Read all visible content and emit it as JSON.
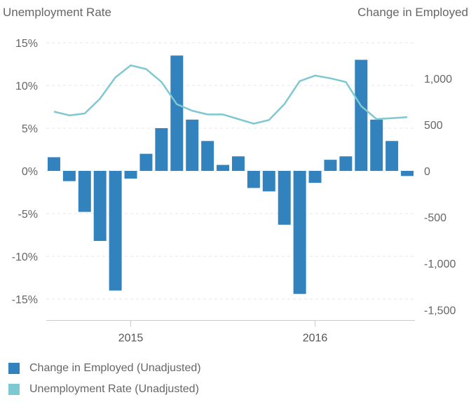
{
  "chart_data": {
    "type": "bar+line",
    "left_axis_title": "Unemployment Rate",
    "right_axis_title": "Change in Employed",
    "left_axis": {
      "min": -17.5,
      "max": 15,
      "ticks": [
        15,
        10,
        5,
        0,
        -5,
        -10,
        -15
      ],
      "tick_labels": [
        "15%",
        "10%",
        "5%",
        "0%",
        "-5%",
        "-10%",
        "-15%"
      ]
    },
    "right_axis": {
      "min": -1750,
      "max": 1250,
      "ticks": [
        1000,
        500,
        0,
        -500,
        -1000,
        -1500
      ],
      "tick_labels": [
        "1,000",
        "500",
        "0",
        "-500",
        "-1,000",
        "-1,500"
      ]
    },
    "x_labels": [
      {
        "label": "2015",
        "index": 5
      },
      {
        "label": "2016",
        "index": 17
      }
    ],
    "grid": true,
    "legend_position": "bottom-left",
    "series": [
      {
        "name": "Change in Employed (Unadjusted)",
        "kind": "bar",
        "axis": "left",
        "color": "#3182bd",
        "values": [
          1.6,
          -1.2,
          -4.8,
          -8.2,
          -14.0,
          -0.9,
          2.0,
          5.0,
          13.5,
          6.0,
          3.5,
          0.7,
          1.7,
          -2.0,
          -2.4,
          -6.3,
          -14.4,
          -1.4,
          1.3,
          1.7,
          13.0,
          6.0,
          3.5,
          -0.6
        ]
      },
      {
        "name": "Unemployment Rate (Unadjusted)",
        "kind": "line",
        "axis": "right",
        "color": "#7ec8d1",
        "values": [
          640,
          600,
          620,
          780,
          1010,
          1140,
          1100,
          960,
          720,
          650,
          610,
          610,
          560,
          510,
          550,
          720,
          970,
          1030,
          1000,
          960,
          700,
          560,
          570,
          580
        ]
      }
    ]
  }
}
